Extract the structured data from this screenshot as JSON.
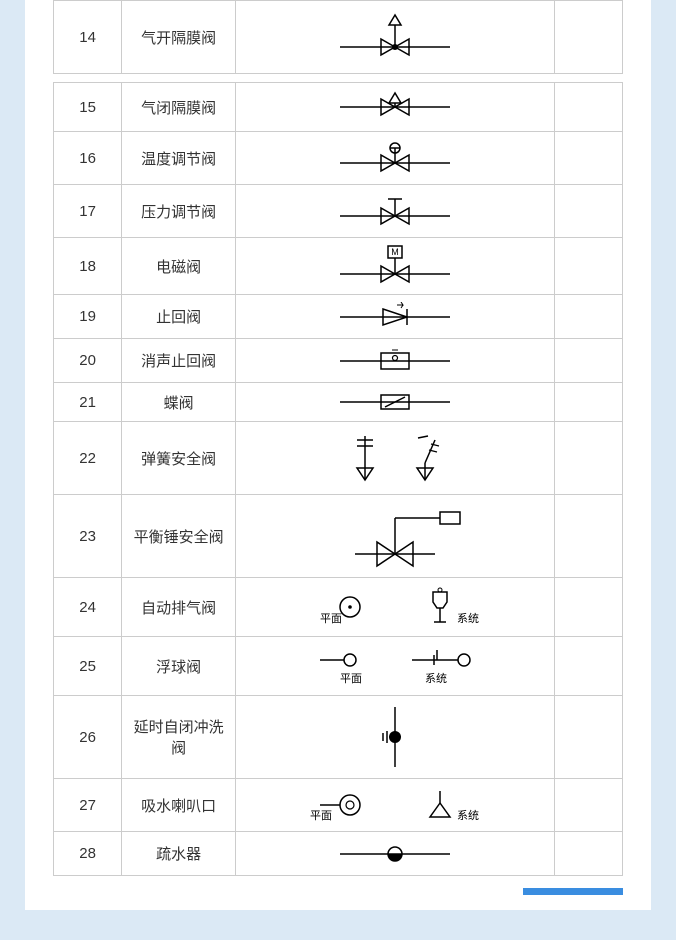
{
  "background_color": "#dbe9f5",
  "card_color": "#ffffff",
  "border_color": "#cccccc",
  "text_color": "#333333",
  "accent_color": "#3a8de0",
  "stroke_color": "#000000",
  "font_size": 15,
  "label_font_size": 11,
  "columns": {
    "num_width": "12%",
    "name_width": "20%",
    "sym_width": "56%",
    "extra_width": "12%"
  },
  "label_plan": "平面",
  "label_system": "系统",
  "table1": {
    "rows": [
      {
        "num": "14",
        "name": "气开隔膜阀",
        "symbol": "diaphragm-open"
      }
    ]
  },
  "table2": {
    "rows": [
      {
        "num": "15",
        "name": "气闭隔膜阀",
        "symbol": "diaphragm-close"
      },
      {
        "num": "16",
        "name": "温度调节阀",
        "symbol": "temp-regulate"
      },
      {
        "num": "17",
        "name": "压力调节阀",
        "symbol": "pressure-regulate"
      },
      {
        "num": "18",
        "name": "电磁阀",
        "symbol": "solenoid"
      },
      {
        "num": "19",
        "name": "止回阀",
        "symbol": "check-valve"
      },
      {
        "num": "20",
        "name": "消声止回阀",
        "symbol": "silent-check"
      },
      {
        "num": "21",
        "name": "蝶阀",
        "symbol": "butterfly"
      },
      {
        "num": "22",
        "name": "弹簧安全阀",
        "symbol": "spring-safety"
      },
      {
        "num": "23",
        "name": "平衡锤安全阀",
        "symbol": "weight-safety"
      },
      {
        "num": "24",
        "name": "自动排气阀",
        "symbol": "auto-exhaust"
      },
      {
        "num": "25",
        "name": "浮球阀",
        "symbol": "float-valve"
      },
      {
        "num": "26",
        "name": "延时自闭冲洗阀",
        "symbol": "delay-flush"
      },
      {
        "num": "27",
        "name": "吸水喇叭口",
        "symbol": "suction-bell"
      },
      {
        "num": "28",
        "name": "疏水器",
        "symbol": "steam-trap"
      }
    ]
  }
}
